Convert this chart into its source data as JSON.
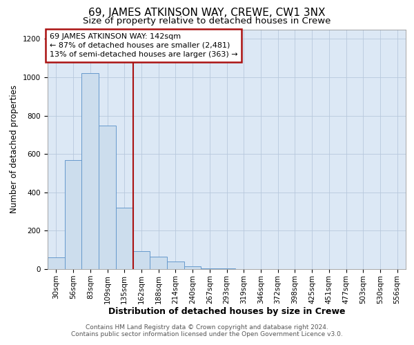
{
  "title1": "69, JAMES ATKINSON WAY, CREWE, CW1 3NX",
  "title2": "Size of property relative to detached houses in Crewe",
  "xlabel": "Distribution of detached houses by size in Crewe",
  "ylabel": "Number of detached properties",
  "bin_labels": [
    "30sqm",
    "56sqm",
    "83sqm",
    "109sqm",
    "135sqm",
    "162sqm",
    "188sqm",
    "214sqm",
    "240sqm",
    "267sqm",
    "293sqm",
    "319sqm",
    "346sqm",
    "372sqm",
    "398sqm",
    "425sqm",
    "451sqm",
    "477sqm",
    "503sqm",
    "530sqm",
    "556sqm"
  ],
  "bar_heights": [
    60,
    570,
    1020,
    750,
    320,
    95,
    65,
    40,
    15,
    5,
    2,
    0,
    0,
    0,
    0,
    0,
    0,
    0,
    0,
    0,
    0
  ],
  "bar_color": "#ccdded",
  "bar_edge_color": "#6699cc",
  "vline_x": 4.5,
  "vline_color": "#aa1111",
  "ylim": [
    0,
    1250
  ],
  "yticks": [
    0,
    200,
    400,
    600,
    800,
    1000,
    1200
  ],
  "annotation_text": "69 JAMES ATKINSON WAY: 142sqm\n← 87% of detached houses are smaller (2,481)\n13% of semi-detached houses are larger (363) →",
  "annotation_box_color": "#aa1111",
  "background_color": "#dce8f5",
  "footer_text": "Contains HM Land Registry data © Crown copyright and database right 2024.\nContains public sector information licensed under the Open Government Licence v3.0.",
  "title1_fontsize": 11,
  "title2_fontsize": 9.5,
  "annotation_fontsize": 8,
  "tick_fontsize": 7.5,
  "ylabel_fontsize": 8.5,
  "xlabel_fontsize": 9,
  "xlabel_fontweight": "bold",
  "footer_fontsize": 6.5
}
